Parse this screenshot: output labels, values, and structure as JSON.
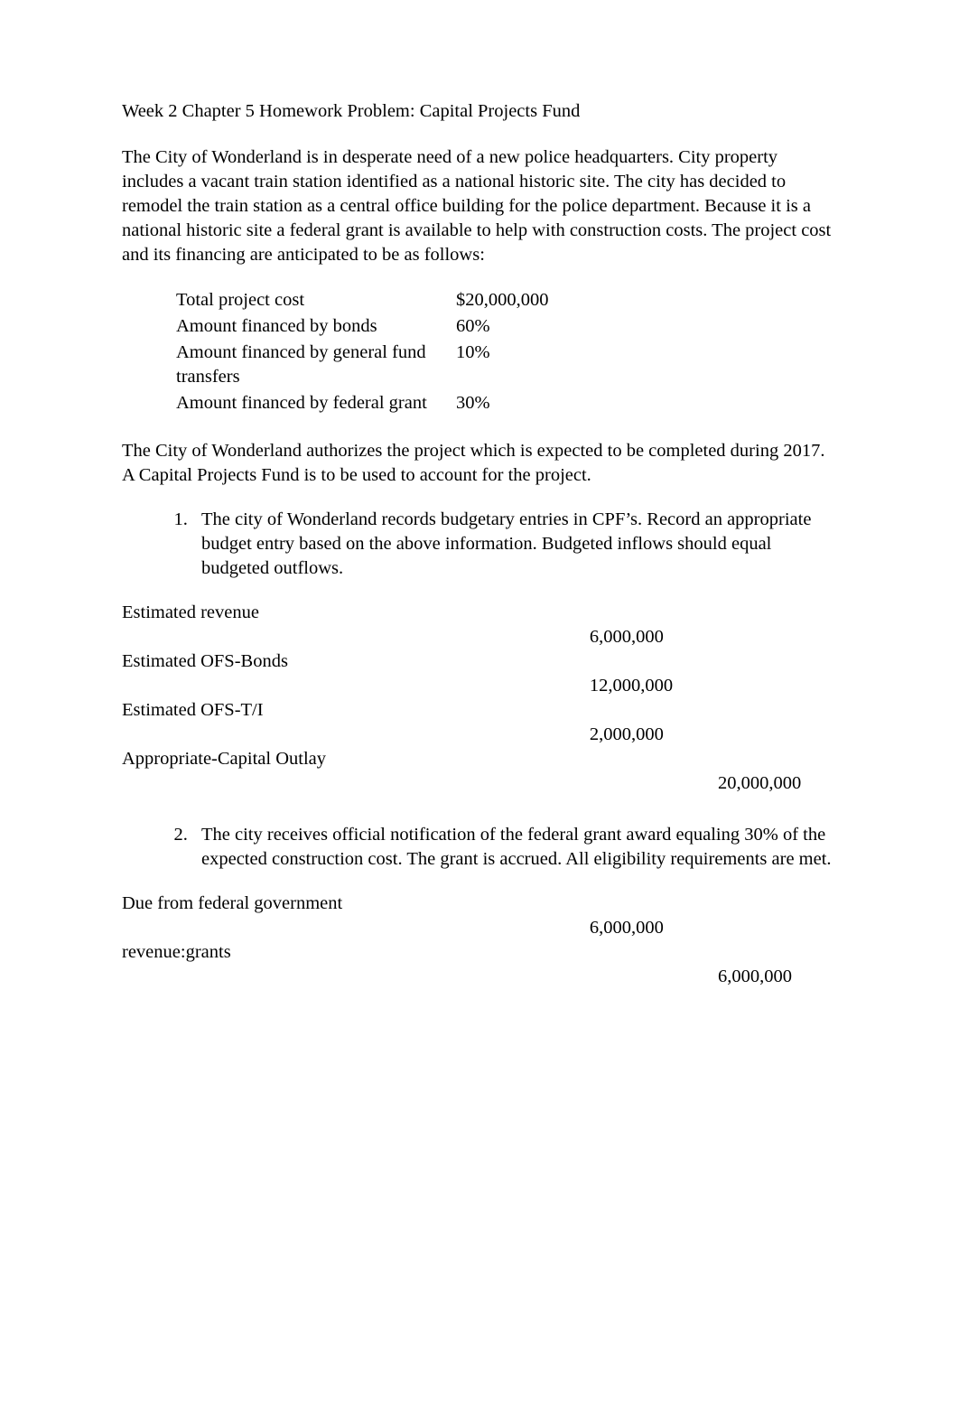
{
  "header": {
    "title": "Week 2 Chapter 5 Homework Problem: Capital Projects Fund"
  },
  "intro": {
    "text": "The City of Wonderland is in desperate need of a new police headquarters. City property includes a vacant train station identified as a national historic site. The city has decided to remodel the train station as a central office building for the police department. Because it is a national historic site a federal grant is available to help with construction costs. The project cost and its financing are anticipated to be as follows:"
  },
  "financing_table": {
    "rows": [
      {
        "label": "Total project cost",
        "value": "$20,000,000"
      },
      {
        "label": "Amount financed by bonds",
        "value": "60%"
      },
      {
        "label": "Amount financed by general fund transfers",
        "value": "10%"
      },
      {
        "label": "Amount financed by federal grant",
        "value": "30%"
      }
    ],
    "highlight_bg": "#f5f5f5"
  },
  "auth_para": {
    "text": "The City of Wonderland authorizes the project which is expected to be completed during 2017. A Capital Projects Fund is to be used to account for the project."
  },
  "item1": {
    "text": "The city of Wonderland records budgetary entries in CPF’s. Record an appropriate budget entry based on the above information. Budgeted inflows should equal budgeted outflows."
  },
  "je1": {
    "rows": [
      {
        "acct": "Estimated revenue",
        "dr": "",
        "cr": ""
      },
      {
        "acct": "",
        "dr": "6,000,000",
        "cr": ""
      },
      {
        "acct": "Estimated OFS-Bonds",
        "dr": "",
        "cr": ""
      },
      {
        "acct": "",
        "dr": "12,000,000",
        "cr": ""
      },
      {
        "acct": "Estimated OFS-T/I",
        "dr": "",
        "cr": ""
      },
      {
        "acct": "",
        "dr": "2,000,000",
        "cr": ""
      },
      {
        "acct": "Appropriate-Capital Outlay",
        "dr": "",
        "cr": ""
      },
      {
        "acct": "",
        "dr": "",
        "cr": "20,000,000"
      }
    ]
  },
  "item2": {
    "text": "The city receives official notification of the federal grant award equaling 30% of the expected construction cost. The grant is accrued. All eligibility requirements are met."
  },
  "je2": {
    "rows": [
      {
        "acct": "Due from federal government",
        "dr": "",
        "cr": ""
      },
      {
        "acct": "",
        "dr": "6,000,000",
        "cr": ""
      },
      {
        "acct": "revenue:grants",
        "dr": "",
        "cr": ""
      },
      {
        "acct": "",
        "dr": "",
        "cr": "6,000,000"
      }
    ]
  }
}
